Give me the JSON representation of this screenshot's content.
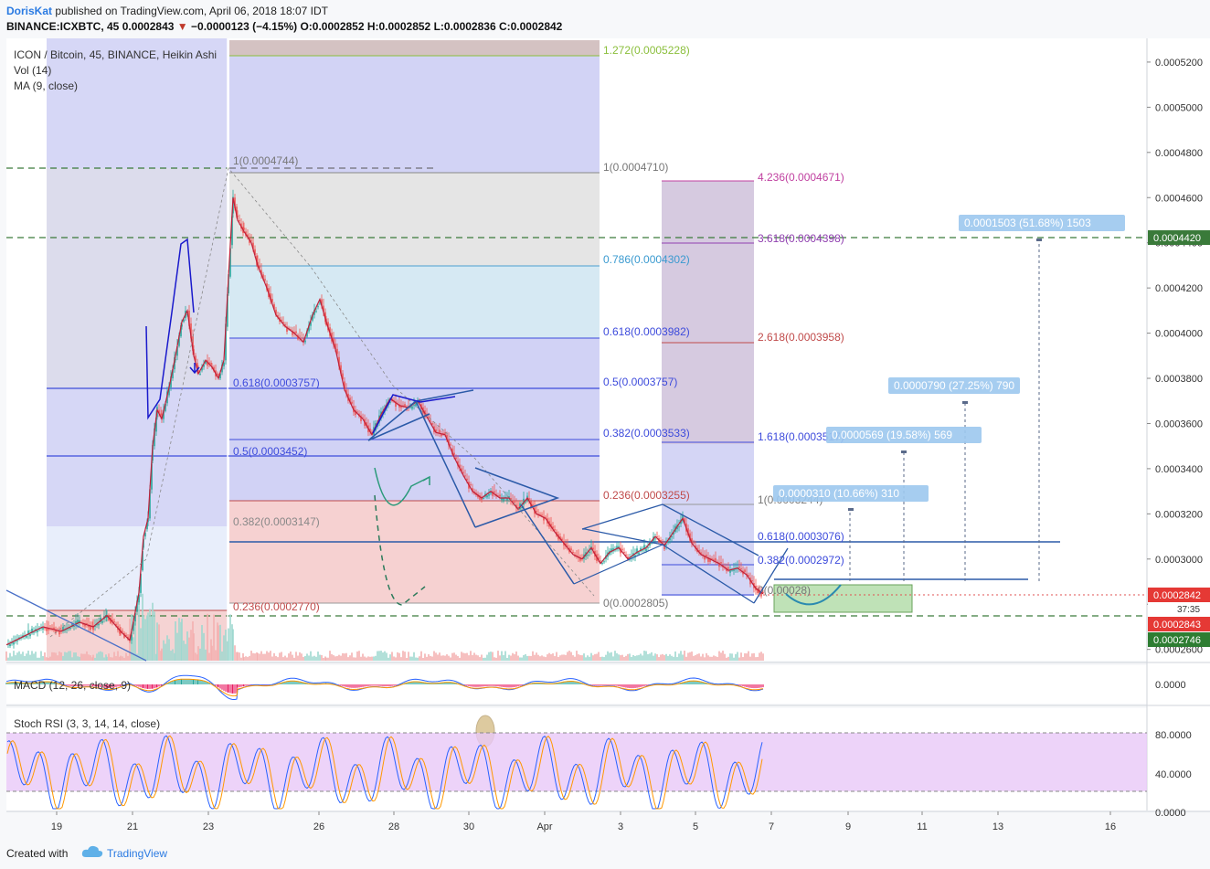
{
  "header": {
    "author": "DorisKat",
    "published": "published on TradingView.com, April 06, 2018 18:07 IDT",
    "symbol_line": "BINANCE:ICXBTC, 45",
    "last": "0.0002843",
    "change": "−0.0000123 (−4.15%)",
    "ohlc": "O:0.0002852 H:0.0002852 L:0.0002836 C:0.0002842"
  },
  "legend": {
    "title": "ICON / Bitcoin, 45, BINANCE, Heikin Ashi",
    "vol": "Vol (14)",
    "ma": "MA (9, close)",
    "macd": "MACD (12, 26, close, 9)",
    "stoch": "Stoch RSI (3, 3, 14, 14, close)"
  },
  "footer": {
    "created": "Created with",
    "brand": "TradingView"
  },
  "colors": {
    "up": "#26a69a",
    "down": "#ef5350",
    "ma": "#c0203a",
    "fib_blue": "#3d4bdc",
    "dashed_green": "#3a7a3a"
  },
  "price_labels": {
    "last": "0.0002842",
    "timer": "37:35",
    "close": "0.0002843",
    "level_low": "0.0002746",
    "level_high": "0.0004420"
  },
  "fib_left": [
    "1.272(0.0005228)",
    "1(0.0004710)",
    "0.786(0.0004302)",
    "0.618(0.0003982)",
    "0.5(0.0003757)",
    "0.382(0.0003533)",
    "0.236(0.0003255)",
    "0(0.0002805)"
  ],
  "fib_mid": [
    "1(0.0004744)",
    "0.618(0.0003757)",
    "0.5(0.0003452)",
    "0.382(0.0003147)",
    "0.236(0.0002770)"
  ],
  "fib_ext": [
    "4.236(0.0004671)",
    "3.618(0.0004398)",
    "2.618(0.0003958)",
    "1.618(0.0003517)",
    "1(0.0003244)",
    "0.618(0.0003076)",
    "0.382(0.0002972)",
    "0(0.00028)"
  ],
  "targets": [
    "0.0000310 (10.66%) 310",
    "0.0000569 (19.58%) 569",
    "0.0000790 (27.25%) 790",
    "0.0001503 (51.68%) 1503"
  ],
  "chart_data": {
    "type": "candlestick",
    "x_ticks": [
      "19",
      "21",
      "23",
      "26",
      "28",
      "30",
      "Apr",
      "3",
      "5",
      "7",
      "9",
      "11",
      "13",
      "16"
    ],
    "y_ticks": [
      "0.0005200",
      "0.0005000",
      "0.0004800",
      "0.0004600",
      "0.0004400",
      "0.0004200",
      "0.0004000",
      "0.0003800",
      "0.0003600",
      "0.0003400",
      "0.0003200",
      "0.0003000",
      "0.0002800",
      "0.0002600"
    ],
    "macd_ticks": [
      "0.0000"
    ],
    "stoch_ticks": [
      "80.0000",
      "40.0000",
      "0.0000"
    ],
    "ylim": [
      0.000258,
      0.000532
    ],
    "price_path": [
      [
        0,
        0.000262
      ],
      [
        20,
        0.000266
      ],
      [
        40,
        0.00027
      ],
      [
        60,
        0.000268
      ],
      [
        80,
        0.000272
      ],
      [
        95,
        0.00027
      ],
      [
        110,
        0.000275
      ],
      [
        125,
        0.000268
      ],
      [
        135,
        0.000264
      ],
      [
        145,
        0.000285
      ],
      [
        150,
        0.00031
      ],
      [
        155,
        0.000318
      ],
      [
        160,
        0.00035
      ],
      [
        165,
        0.000366
      ],
      [
        170,
        0.000362
      ],
      [
        178,
        0.000376
      ],
      [
        185,
        0.00039
      ],
      [
        192,
        0.000405
      ],
      [
        198,
        0.00041
      ],
      [
        205,
        0.00039
      ],
      [
        210,
        0.000382
      ],
      [
        218,
        0.000388
      ],
      [
        225,
        0.000385
      ],
      [
        232,
        0.00038
      ],
      [
        238,
        0.000388
      ],
      [
        243,
        0.000425
      ],
      [
        248,
        0.00046
      ],
      [
        253,
        0.00045
      ],
      [
        260,
        0.000445
      ],
      [
        268,
        0.00044
      ],
      [
        275,
        0.00043
      ],
      [
        285,
        0.00042
      ],
      [
        295,
        0.000408
      ],
      [
        305,
        0.000403
      ],
      [
        315,
        0.0004
      ],
      [
        325,
        0.000396
      ],
      [
        335,
        0.000408
      ],
      [
        343,
        0.000415
      ],
      [
        350,
        0.000405
      ],
      [
        360,
        0.000393
      ],
      [
        370,
        0.000375
      ],
      [
        380,
        0.000366
      ],
      [
        390,
        0.000362
      ],
      [
        400,
        0.000355
      ],
      [
        410,
        0.000364
      ],
      [
        420,
        0.000371
      ],
      [
        430,
        0.000368
      ],
      [
        440,
        0.000367
      ],
      [
        450,
        0.00037
      ],
      [
        460,
        0.000363
      ],
      [
        470,
        0.000356
      ],
      [
        480,
        0.000355
      ],
      [
        490,
        0.000345
      ],
      [
        500,
        0.000337
      ],
      [
        510,
        0.00033
      ],
      [
        520,
        0.000327
      ],
      [
        530,
        0.00033
      ],
      [
        540,
        0.000327
      ],
      [
        550,
        0.000327
      ],
      [
        560,
        0.000322
      ],
      [
        570,
        0.000327
      ],
      [
        580,
        0.00032
      ],
      [
        590,
        0.000318
      ],
      [
        600,
        0.000312
      ],
      [
        610,
        0.000307
      ],
      [
        620,
        0.000302
      ],
      [
        630,
        0.0003
      ],
      [
        640,
        0.000305
      ],
      [
        650,
        0.000298
      ],
      [
        660,
        0.000303
      ],
      [
        670,
        0.000305
      ],
      [
        680,
        0.0003
      ],
      [
        690,
        0.000303
      ],
      [
        700,
        0.000305
      ],
      [
        710,
        0.00031
      ],
      [
        720,
        0.000306
      ],
      [
        730,
        0.000312
      ],
      [
        740,
        0.000318
      ],
      [
        750,
        0.000307
      ],
      [
        760,
        0.000302
      ],
      [
        770,
        0.0003
      ],
      [
        780,
        0.000298
      ],
      [
        790,
        0.000295
      ],
      [
        800,
        0.000296
      ],
      [
        810,
        0.000293
      ],
      [
        820,
        0.000287
      ],
      [
        830,
        0.000284
      ]
    ]
  }
}
